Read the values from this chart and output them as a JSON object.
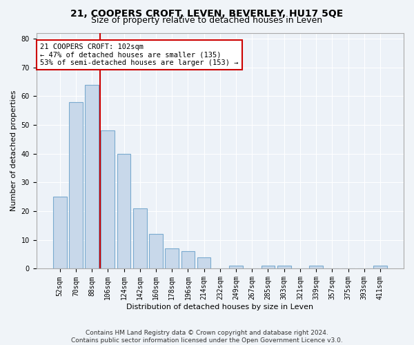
{
  "title": "21, COOPERS CROFT, LEVEN, BEVERLEY, HU17 5QE",
  "subtitle": "Size of property relative to detached houses in Leven",
  "xlabel": "Distribution of detached houses by size in Leven",
  "ylabel": "Number of detached properties",
  "bar_labels": [
    "52sqm",
    "70sqm",
    "88sqm",
    "106sqm",
    "124sqm",
    "142sqm",
    "160sqm",
    "178sqm",
    "196sqm",
    "214sqm",
    "232sqm",
    "249sqm",
    "267sqm",
    "285sqm",
    "303sqm",
    "321sqm",
    "339sqm",
    "357sqm",
    "375sqm",
    "393sqm",
    "411sqm"
  ],
  "bar_values": [
    25,
    58,
    64,
    48,
    40,
    21,
    12,
    7,
    6,
    4,
    0,
    1,
    0,
    1,
    1,
    0,
    1,
    0,
    0,
    0,
    1
  ],
  "bar_color": "#c8d8ea",
  "bar_edgecolor": "#7aaacf",
  "vline_color": "#cc0000",
  "annotation_text": "21 COOPERS CROFT: 102sqm\n← 47% of detached houses are smaller (135)\n53% of semi-detached houses are larger (153) →",
  "annotation_box_color": "#ffffff",
  "annotation_box_edgecolor": "#cc0000",
  "ylim": [
    0,
    82
  ],
  "yticks": [
    0,
    10,
    20,
    30,
    40,
    50,
    60,
    70,
    80
  ],
  "footer_line1": "Contains HM Land Registry data © Crown copyright and database right 2024.",
  "footer_line2": "Contains public sector information licensed under the Open Government Licence v3.0.",
  "bg_color": "#f0f4f8",
  "plot_bg_color": "#edf2f8",
  "grid_color": "#ffffff",
  "title_fontsize": 10,
  "subtitle_fontsize": 9,
  "axis_label_fontsize": 8,
  "tick_fontsize": 7,
  "annotation_fontsize": 7.5,
  "footer_fontsize": 6.5
}
